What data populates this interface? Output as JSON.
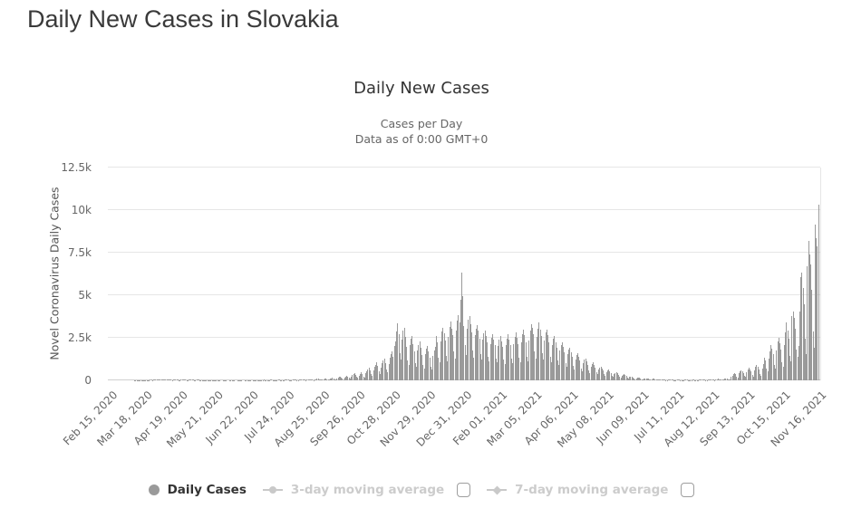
{
  "page": {
    "title": "Daily New Cases in Slovakia"
  },
  "chart_data": {
    "type": "bar",
    "title": "Daily New Cases",
    "subtitle_line1": "Cases per Day",
    "subtitle_line2": "Data as of 0:00 GMT+0",
    "xlabel": "",
    "ylabel": "Novel Coronavirus Daily Cases",
    "ylim": [
      0,
      12500
    ],
    "grid": true,
    "legend_position": "bottom",
    "y_ticks": [
      "0",
      "2.5k",
      "5k",
      "7.5k",
      "10k",
      "12.5k"
    ],
    "y_tick_values": [
      0,
      2500,
      5000,
      7500,
      10000,
      12500
    ],
    "x_tick_labels": [
      "Feb 15, 2020",
      "Mar 18, 2020",
      "Apr 19, 2020",
      "May 21, 2020",
      "Jun 22, 2020",
      "Jul 24, 2020",
      "Aug 25, 2020",
      "Sep 26, 2020",
      "Oct 28, 2020",
      "Nov 29, 2020",
      "Dec 31, 2020",
      "Feb 01, 2021",
      "Mar 05, 2021",
      "Apr 06, 2021",
      "May 08, 2021",
      "Jun 09, 2021",
      "Jul 11, 2021",
      "Aug 12, 2021",
      "Sep 13, 2021",
      "Oct 15, 2021",
      "Nov 16, 2021"
    ],
    "x_tick_day_index": [
      0,
      32,
      64,
      96,
      128,
      160,
      192,
      224,
      256,
      288,
      320,
      352,
      384,
      416,
      448,
      480,
      512,
      544,
      576,
      608,
      640
    ],
    "x_start_label": "Feb 15, 2020",
    "series": [
      {
        "name": "Daily Cases",
        "type": "column",
        "color": "#9a9a9a",
        "daily_values": [
          0,
          0,
          0,
          0,
          0,
          0,
          0,
          0,
          0,
          0,
          0,
          0,
          0,
          0,
          0,
          0,
          0,
          0,
          0,
          0,
          1,
          2,
          3,
          2,
          5,
          7,
          9,
          11,
          8,
          14,
          17,
          12,
          19,
          22,
          16,
          24,
          27,
          21,
          29,
          32,
          25,
          34,
          38,
          30,
          41,
          45,
          47,
          52,
          58,
          49,
          35,
          28,
          61,
          68,
          72,
          63,
          51,
          30,
          24,
          57,
          66,
          70,
          60,
          48,
          27,
          21,
          49,
          55,
          59,
          50,
          40,
          22,
          17,
          38,
          43,
          46,
          35,
          29,
          18,
          13,
          31,
          34,
          30,
          25,
          16,
          11,
          22,
          25,
          21,
          17,
          10,
          7,
          15,
          18,
          16,
          12,
          8,
          5,
          10,
          12,
          9,
          7,
          4,
          2,
          6,
          8,
          7,
          5,
          3,
          2,
          6,
          9,
          11,
          8,
          6,
          3,
          2,
          7,
          10,
          13,
          10,
          7,
          4,
          3,
          9,
          14,
          18,
          13,
          9,
          5,
          4,
          11,
          16,
          20,
          15,
          10,
          6,
          5,
          13,
          19,
          24,
          28,
          20,
          11,
          8,
          16,
          23,
          29,
          31,
          23,
          13,
          10,
          19,
          26,
          31,
          35,
          26,
          15,
          11,
          21,
          28,
          33,
          38,
          28,
          17,
          13,
          23,
          30,
          49,
          54,
          41,
          23,
          18,
          36,
          47,
          62,
          68,
          52,
          29,
          22,
          43,
          54,
          75,
          80,
          63,
          35,
          27,
          49,
          62,
          84,
          91,
          72,
          41,
          31,
          54,
          68,
          92,
          100,
          80,
          45,
          36,
          91,
          120,
          137,
          114,
          72,
          53,
          110,
          161,
          188,
          201,
          148,
          92,
          72,
          175,
          235,
          290,
          238,
          170,
          112,
          226,
          310,
          360,
          419,
          338,
          205,
          148,
          290,
          368,
          460,
          383,
          232,
          175,
          405,
          522,
          640,
          724,
          590,
          360,
          265,
          560,
          790,
          905,
          1050,
          840,
          510,
          390,
          760,
          1020,
          1184,
          1290,
          1010,
          620,
          460,
          970,
          1320,
          1567,
          1728,
          1380,
          2044,
          2300,
          2855,
          3363,
          2690,
          1610,
          1240,
          2410,
          2900,
          3100,
          2550,
          1970,
          1180,
          910,
          2050,
          2450,
          2600,
          2150,
          1700,
          1020,
          790,
          1740,
          2080,
          2280,
          1890,
          1510,
          900,
          700,
          1550,
          1850,
          2010,
          1680,
          1350,
          820,
          640,
          1450,
          1750,
          1950,
          2600,
          2250,
          1350,
          1050,
          2300,
          2850,
          3100,
          2750,
          2350,
          1450,
          1100,
          2550,
          3150,
          3450,
          3050,
          2650,
          1700,
          1300,
          2900,
          3500,
          3850,
          3400,
          4747,
          6315,
          4950,
          3200,
          2100,
          1500,
          3050,
          3550,
          3800,
          3300,
          2800,
          1750,
          1350,
          2650,
          3050,
          3250,
          2900,
          2450,
          1550,
          1200,
          2400,
          2750,
          2950,
          2600,
          2250,
          1400,
          1100,
          2150,
          2500,
          2700,
          2400,
          2050,
          1300,
          1050,
          2000,
          2400,
          2600,
          2300,
          1950,
          1250,
          980,
          2050,
          2450,
          2700,
          2400,
          2050,
          1300,
          1020,
          2150,
          2550,
          2800,
          2500,
          2150,
          1350,
          1060,
          2250,
          2700,
          3000,
          2650,
          2250,
          1400,
          1100,
          2350,
          2900,
          3300,
          3100,
          2700,
          1700,
          1280,
          2550,
          3050,
          3400,
          3000,
          2600,
          1600,
          1200,
          2350,
          2800,
          3000,
          2650,
          2250,
          1400,
          1050,
          2050,
          2450,
          2600,
          2250,
          1900,
          1180,
          880,
          1750,
          2100,
          2250,
          1950,
          1650,
          1030,
          780,
          1550,
          1800,
          1900,
          1650,
          1400,
          870,
          640,
          1250,
          1500,
          1600,
          1380,
          1150,
          700,
          520,
          1000,
          1200,
          1300,
          1100,
          920,
          560,
          420,
          820,
          980,
          1050,
          900,
          750,
          470,
          350,
          640,
          760,
          820,
          700,
          580,
          360,
          270,
          500,
          590,
          640,
          540,
          450,
          280,
          200,
          380,
          450,
          490,
          410,
          340,
          210,
          150,
          280,
          330,
          360,
          300,
          250,
          150,
          110,
          210,
          230,
          195,
          160,
          100,
          70,
          130,
          155,
          170,
          140,
          115,
          70,
          50,
          95,
          115,
          125,
          105,
          85,
          55,
          38,
          70,
          85,
          92,
          78,
          62,
          40,
          28,
          50,
          60,
          65,
          55,
          45,
          36,
          23,
          16,
          32,
          40,
          44,
          36,
          29,
          18,
          13,
          26,
          33,
          36,
          30,
          25,
          16,
          12,
          24,
          29,
          33,
          28,
          22,
          14,
          11,
          22,
          28,
          32,
          26,
          21,
          14,
          11,
          28,
          45,
          56,
          62,
          50,
          40,
          26,
          20,
          48,
          63,
          72,
          60,
          48,
          30,
          24,
          56,
          74,
          85,
          70,
          56,
          35,
          28,
          66,
          88,
          100,
          84,
          67,
          42,
          34,
          210,
          290,
          360,
          410,
          370,
          230,
          170,
          400,
          520,
          610,
          540,
          450,
          270,
          200,
          480,
          640,
          740,
          650,
          540,
          320,
          240,
          580,
          780,
          900,
          790,
          660,
          390,
          290,
          700,
          940,
          1310,
          1150,
          680,
          520,
          1270,
          1700,
          2076,
          1850,
          1540,
          900,
          690,
          1750,
          2300,
          2475,
          2200,
          1820,
          1080,
          820,
          2100,
          2800,
          3389,
          2950,
          2440,
          1450,
          1100,
          3763,
          4057,
          3650,
          3050,
          1800,
          1380,
          2040,
          4022,
          6061,
          6333,
          5416,
          4455,
          2447,
          1543,
          6713,
          8192,
          7418,
          6796,
          5334,
          2870,
          1892,
          9171,
          8342,
          7874,
          10315
        ]
      }
    ],
    "legend": [
      {
        "label": "Daily Cases",
        "enabled": true,
        "marker": "circle",
        "checkbox": false
      },
      {
        "label": "3-day moving average",
        "enabled": false,
        "marker": "line-circle",
        "checkbox": true,
        "checked": false
      },
      {
        "label": "7-day moving average",
        "enabled": false,
        "marker": "line-diamond",
        "checkbox": true,
        "checked": false
      }
    ],
    "colors": {
      "bar": "#9a9a9a",
      "gridline": "#e6e6e6",
      "axis_line": "#d0d0d0",
      "tick_text": "#666666",
      "title_text": "#333333",
      "disabled_legend": "#cccccc"
    }
  }
}
